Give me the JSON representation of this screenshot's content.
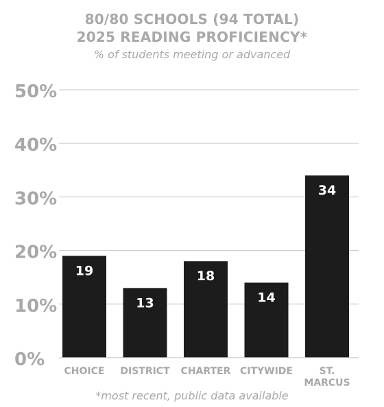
{
  "header": {
    "title_line1": "80/80 SCHOOLS (94 TOTAL)",
    "title_line2": "2025 READING PROFICIENCY*",
    "subtitle": "% of students meeting or advanced"
  },
  "footnote": "*most recent, public data available",
  "colors": {
    "bar": "#1c1c1c",
    "text_muted": "#a9a9a9",
    "grid": "#cfcfcf",
    "bar_label": "#ffffff"
  },
  "chart_data": {
    "type": "bar",
    "title": "80/80 SCHOOLS (94 TOTAL) 2025 READING PROFICIENCY*",
    "subtitle": "% of students meeting or advanced",
    "categories": [
      "CHOICE",
      "DISTRICT",
      "CHARTER",
      "CITYWIDE",
      "ST. MARCUS"
    ],
    "category_lines": [
      [
        "CHOICE"
      ],
      [
        "DISTRICT"
      ],
      [
        "CHARTER"
      ],
      [
        "CITYWIDE"
      ],
      [
        "ST.",
        "MARCUS"
      ]
    ],
    "values": [
      19,
      13,
      18,
      14,
      34
    ],
    "value_labels": [
      "19",
      "13",
      "18",
      "14",
      "34"
    ],
    "ylim": [
      0,
      50
    ],
    "yticks": [
      0,
      10,
      20,
      30,
      40,
      50
    ],
    "ytick_labels": [
      "0%",
      "10%",
      "20%",
      "30%",
      "40%",
      "50%"
    ],
    "grid": true,
    "legend": "none"
  }
}
